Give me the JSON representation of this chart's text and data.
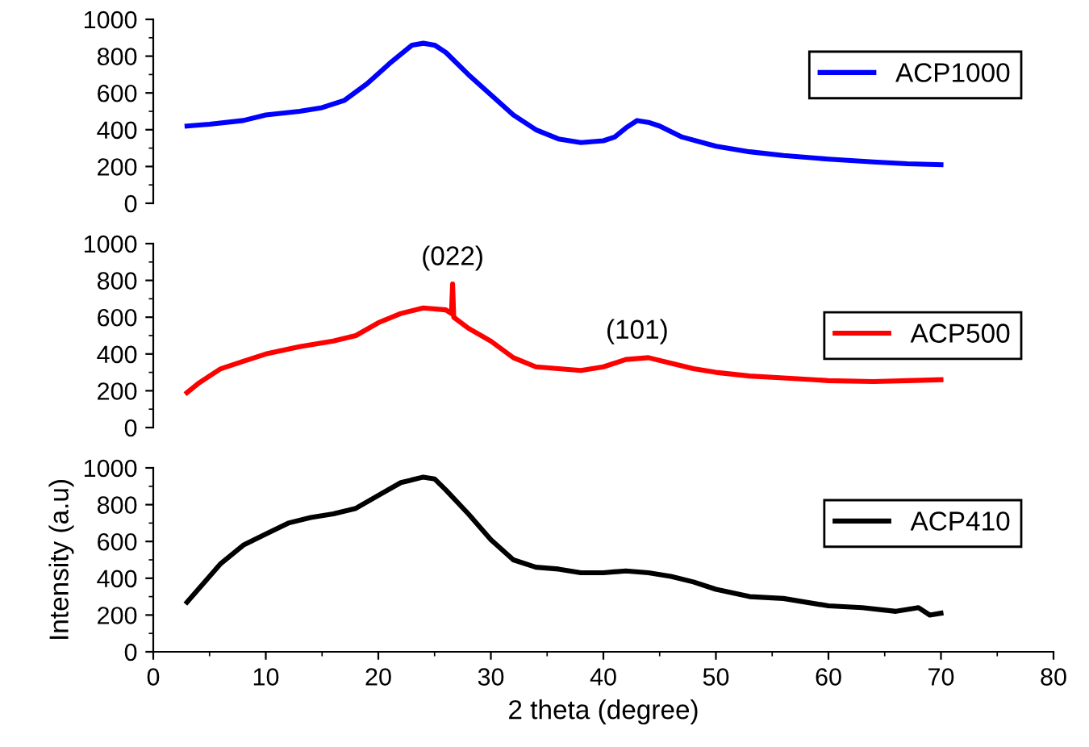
{
  "chart_data": [
    {
      "type": "line",
      "xlim": [
        0,
        80
      ],
      "ylim": [
        0,
        1000
      ],
      "yticks": [
        0,
        200,
        400,
        600,
        800,
        1000
      ],
      "tick_labels": "y",
      "legend": "top right",
      "grid": false,
      "marker": "none",
      "line_style": "solid",
      "x": [
        3,
        5,
        8,
        10,
        13,
        15,
        17,
        19,
        21,
        23,
        24,
        25,
        26,
        28,
        30,
        32,
        34,
        36,
        38,
        40,
        41,
        42,
        43,
        44,
        45,
        47,
        50,
        53,
        56,
        60,
        64,
        67,
        70
      ],
      "series": [
        {
          "name": "ACP1000",
          "color": "#0000ff",
          "values": [
            420,
            430,
            450,
            480,
            500,
            520,
            560,
            650,
            760,
            860,
            870,
            860,
            820,
            700,
            590,
            480,
            400,
            350,
            330,
            340,
            360,
            410,
            450,
            440,
            420,
            360,
            310,
            280,
            260,
            240,
            225,
            215,
            210
          ]
        }
      ]
    },
    {
      "type": "line",
      "xlim": [
        0,
        80
      ],
      "ylim": [
        0,
        1000
      ],
      "yticks": [
        0,
        200,
        400,
        600,
        800,
        1000
      ],
      "tick_labels": "y",
      "legend": "right",
      "grid": false,
      "marker": "none",
      "line_style": "solid",
      "x": [
        3,
        4,
        6,
        8,
        10,
        13,
        16,
        18,
        20,
        22,
        24,
        26,
        26.5,
        26.6,
        26.7,
        28,
        30,
        32,
        34,
        36,
        38,
        40,
        42,
        44,
        46,
        48,
        50,
        53,
        56,
        60,
        64,
        67,
        70
      ],
      "series": [
        {
          "name": "ACP500",
          "color": "#ff0000",
          "values": [
            190,
            240,
            320,
            360,
            400,
            440,
            470,
            500,
            570,
            620,
            650,
            640,
            620,
            780,
            600,
            540,
            470,
            380,
            330,
            320,
            310,
            330,
            370,
            380,
            350,
            320,
            300,
            280,
            270,
            255,
            250,
            255,
            260
          ]
        }
      ],
      "annotations": [
        {
          "text": "(022)",
          "x": 26.6,
          "y": 780
        },
        {
          "text": "(101)",
          "x": 43,
          "y": 380
        }
      ]
    },
    {
      "type": "line",
      "xlim": [
        0,
        80
      ],
      "ylim": [
        0,
        1000
      ],
      "xticks": [
        0,
        10,
        20,
        30,
        40,
        50,
        60,
        70,
        80
      ],
      "yticks": [
        0,
        200,
        400,
        600,
        800,
        1000
      ],
      "xlabel": "2 theta (degree)",
      "ylabel": "Intensity (a.u)",
      "legend": "top right",
      "grid": false,
      "marker": "none",
      "line_style": "solid",
      "x": [
        3,
        4,
        6,
        8,
        10,
        12,
        14,
        16,
        18,
        20,
        22,
        24,
        25,
        26,
        28,
        30,
        32,
        34,
        36,
        38,
        40,
        42,
        44,
        46,
        48,
        50,
        53,
        56,
        60,
        63,
        66,
        68,
        69,
        70
      ],
      "series": [
        {
          "name": "ACP410",
          "color": "#000000",
          "values": [
            270,
            340,
            480,
            580,
            640,
            700,
            730,
            750,
            780,
            850,
            920,
            950,
            940,
            880,
            750,
            610,
            500,
            460,
            450,
            430,
            430,
            440,
            430,
            410,
            380,
            340,
            300,
            290,
            250,
            240,
            220,
            240,
            200,
            210
          ]
        }
      ]
    }
  ]
}
